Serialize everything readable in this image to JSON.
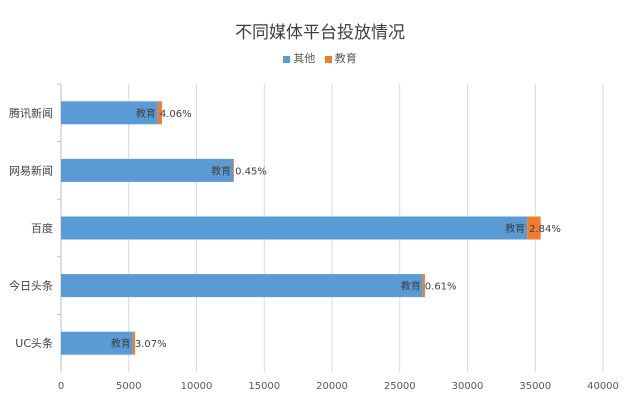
{
  "chart_data": {
    "type": "bar",
    "orientation": "horizontal",
    "stacked": true,
    "title": "不同媒体平台投放情况",
    "categories": [
      "腾讯新闻",
      "网易新闻",
      "百度",
      "今日头条",
      "UC头条"
    ],
    "series": [
      {
        "name": "其他",
        "color": "#5b9bd5",
        "values": [
          7150,
          12700,
          34400,
          26700,
          5300
        ]
      },
      {
        "name": "教育",
        "color": "#ed7d31",
        "values": [
          300,
          60,
          1000,
          160,
          170
        ]
      }
    ],
    "data_labels": [
      {
        "series_label": "教育",
        "percent": "4.06%"
      },
      {
        "series_label": "教育",
        "percent": "0.45%"
      },
      {
        "series_label": "教育",
        "percent": "2.84%"
      },
      {
        "series_label": "教育",
        "percent": "0.61%"
      },
      {
        "series_label": "教育",
        "percent": "3.07%"
      }
    ],
    "xlim": [
      0,
      40000
    ],
    "xticks": [
      "0",
      "5000",
      "10000",
      "15000",
      "20000",
      "25000",
      "30000",
      "35000",
      "40000"
    ],
    "grid": true,
    "legend_position": "top"
  }
}
